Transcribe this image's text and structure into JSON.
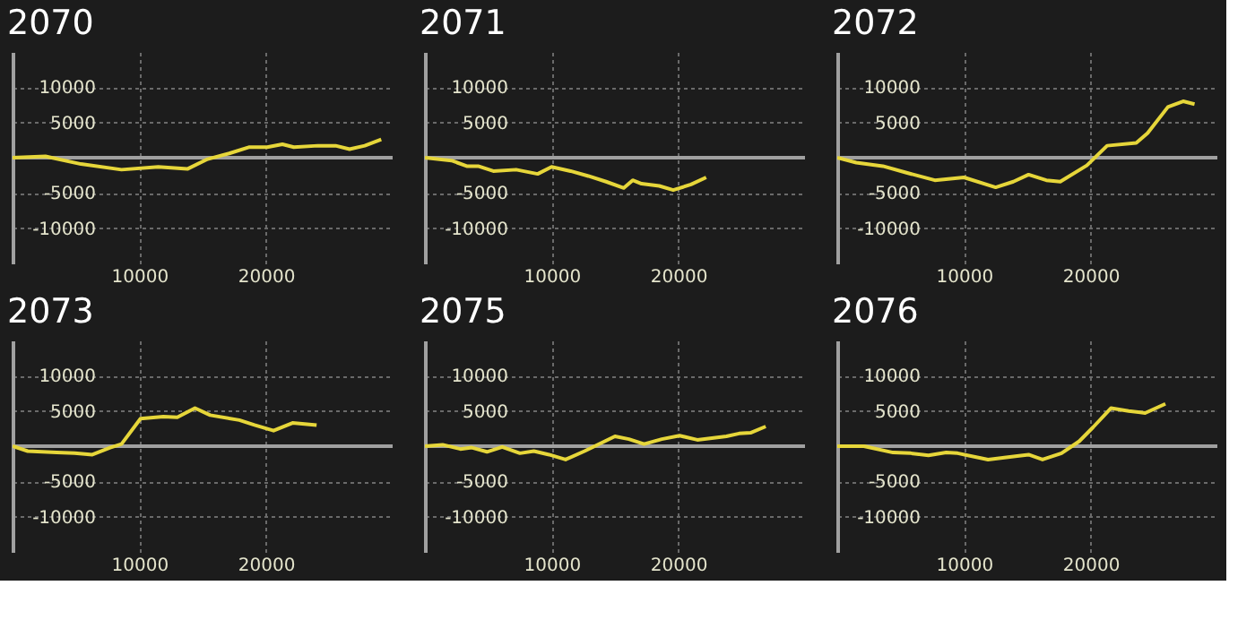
{
  "chart_data": [
    {
      "type": "line",
      "title": "2070",
      "xlim": [
        0,
        30000
      ],
      "ylim": [
        -15000,
        15000
      ],
      "xticks": [
        10000,
        20000
      ],
      "yticks": [
        -10000,
        -5000,
        5000,
        10000
      ],
      "grid": true,
      "ref_lines": [
        {
          "axis": "y",
          "value": 0,
          "color": "#a0a0a0"
        }
      ],
      "x": [
        0,
        2600,
        5400,
        8600,
        11500,
        13800,
        15400,
        17100,
        18700,
        20100,
        21300,
        22200,
        24100,
        25500,
        26600,
        27800,
        29100
      ],
      "series": [
        {
          "color": "#e6d63a",
          "values": [
            0,
            200,
            -900,
            -1700,
            -1300,
            -1600,
            -200,
            600,
            1500,
            1500,
            1900,
            1500,
            1700,
            1700,
            1200,
            1700,
            2600
          ]
        }
      ]
    },
    {
      "type": "line",
      "title": "2071",
      "xlim": [
        0,
        30000
      ],
      "ylim": [
        -15000,
        15000
      ],
      "xticks": [
        10000,
        20000
      ],
      "yticks": [
        -10000,
        -5000,
        5000,
        10000
      ],
      "grid": true,
      "ref_lines": [
        {
          "axis": "y",
          "value": 0,
          "color": "#a0a0a0"
        }
      ],
      "x": [
        0,
        2100,
        3300,
        4200,
        5400,
        7200,
        8900,
        10000,
        11500,
        12900,
        14300,
        15700,
        16400,
        17100,
        18500,
        19600,
        21000,
        22200
      ],
      "series": [
        {
          "color": "#e6d63a",
          "values": [
            0,
            -400,
            -1200,
            -1200,
            -1900,
            -1700,
            -2300,
            -1300,
            -1900,
            -2600,
            -3400,
            -4300,
            -3200,
            -3700,
            -4000,
            -4600,
            -3800,
            -2800
          ]
        }
      ]
    },
    {
      "type": "line",
      "title": "2072",
      "xlim": [
        0,
        30000
      ],
      "ylim": [
        -15000,
        15000
      ],
      "xticks": [
        10000,
        20000
      ],
      "yticks": [
        -10000,
        -5000,
        5000,
        10000
      ],
      "grid": true,
      "ref_lines": [
        {
          "axis": "y",
          "value": 0,
          "color": "#a0a0a0"
        }
      ],
      "x": [
        0,
        1500,
        3600,
        5400,
        7700,
        10000,
        12500,
        13900,
        15100,
        16500,
        17600,
        19700,
        21300,
        23600,
        24500,
        26100,
        27300,
        28200
      ],
      "series": [
        {
          "color": "#e6d63a",
          "values": [
            0,
            -700,
            -1200,
            -2100,
            -3200,
            -2800,
            -4200,
            -3400,
            -2400,
            -3200,
            -3400,
            -1100,
            1700,
            2100,
            3500,
            7200,
            8000,
            7600
          ]
        }
      ]
    },
    {
      "type": "line",
      "title": "2073",
      "xlim": [
        0,
        30000
      ],
      "ylim": [
        -15000,
        15000
      ],
      "xticks": [
        10000,
        20000
      ],
      "yticks": [
        -10000,
        -5000,
        5000,
        10000
      ],
      "grid": true,
      "ref_lines": [
        {
          "axis": "y",
          "value": 0,
          "color": "#a0a0a0"
        }
      ],
      "x": [
        0,
        1200,
        3500,
        4900,
        6300,
        7700,
        8600,
        10100,
        11900,
        13000,
        14400,
        15600,
        17900,
        19100,
        20600,
        22100,
        24000
      ],
      "series": [
        {
          "color": "#e6d63a",
          "values": [
            0,
            -700,
            -900,
            -1000,
            -1200,
            -200,
            300,
            3900,
            4200,
            4100,
            5400,
            4400,
            3700,
            3000,
            2200,
            3300,
            3000
          ]
        }
      ]
    },
    {
      "type": "line",
      "title": "2075",
      "xlim": [
        0,
        30000
      ],
      "ylim": [
        -15000,
        15000
      ],
      "xticks": [
        10000,
        20000
      ],
      "yticks": [
        -10000,
        -5000,
        5000,
        10000
      ],
      "grid": true,
      "ref_lines": [
        {
          "axis": "y",
          "value": 0,
          "color": "#a0a0a0"
        }
      ],
      "x": [
        0,
        1400,
        2800,
        3700,
        4900,
        6100,
        7500,
        8600,
        9800,
        11100,
        12600,
        15000,
        16100,
        17300,
        18700,
        20100,
        21500,
        23800,
        24800,
        25700,
        26900
      ],
      "series": [
        {
          "color": "#e6d63a",
          "values": [
            0,
            200,
            -400,
            -200,
            -800,
            -100,
            -1000,
            -700,
            -1200,
            -1900,
            -700,
            1400,
            1000,
            300,
            1000,
            1500,
            900,
            1400,
            1800,
            1900,
            2800
          ]
        }
      ]
    },
    {
      "type": "line",
      "title": "2076",
      "xlim": [
        0,
        30000
      ],
      "ylim": [
        -15000,
        15000
      ],
      "xticks": [
        10000,
        20000
      ],
      "yticks": [
        -10000,
        -5000,
        5000,
        10000
      ],
      "grid": true,
      "ref_lines": [
        {
          "axis": "y",
          "value": 0,
          "color": "#a0a0a0"
        }
      ],
      "x": [
        0,
        2100,
        4400,
        5800,
        7200,
        8600,
        9500,
        11900,
        14200,
        15100,
        16200,
        17700,
        19100,
        20200,
        21600,
        23000,
        24300,
        25900
      ],
      "series": [
        {
          "color": "#e6d63a",
          "values": [
            0,
            0,
            -900,
            -1000,
            -1300,
            -900,
            -1000,
            -1900,
            -1400,
            -1200,
            -1900,
            -1000,
            700,
            2700,
            5400,
            5000,
            4700,
            6000
          ]
        }
      ]
    }
  ]
}
